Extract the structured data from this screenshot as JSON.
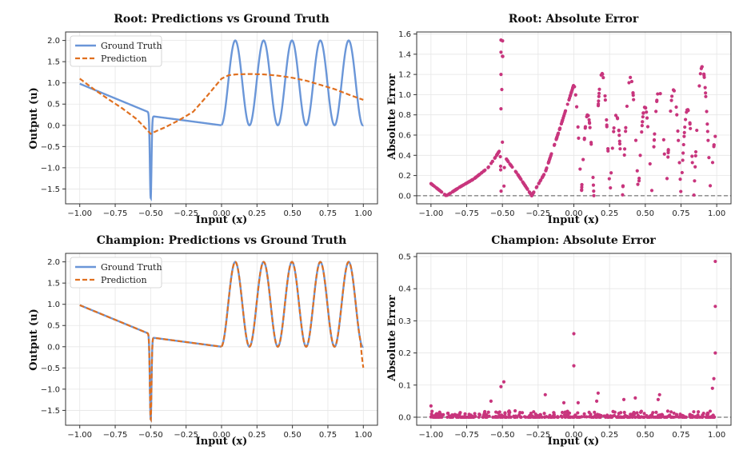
{
  "colors": {
    "ground_truth": "#6a96d8",
    "prediction": "#e07020",
    "error": "#c8357d",
    "zero_line": "#555555"
  },
  "chart_data": [
    {
      "id": "root-pred",
      "type": "line",
      "title": "Root: Predictions vs Ground Truth",
      "xlabel": "Input (x)",
      "ylabel": "Output (u)",
      "xlim": [
        -1.1,
        1.1
      ],
      "ylim": [
        -1.85,
        2.2
      ],
      "xticks": [
        -1.0,
        -0.75,
        -0.5,
        -0.25,
        0.0,
        0.25,
        0.5,
        0.75,
        1.0
      ],
      "xtick_labels": [
        "−1.00",
        "−0.75",
        "−0.50",
        "−0.25",
        "0.00",
        "0.25",
        "0.50",
        "0.75",
        "1.00"
      ],
      "yticks": [
        -1.5,
        -1.0,
        -0.5,
        0.0,
        0.5,
        1.0,
        1.5,
        2.0
      ],
      "ytick_labels": [
        "−1.5",
        "−1.0",
        "−0.5",
        "0.0",
        "0.5",
        "1.0",
        "1.5",
        "2.0"
      ],
      "legend": {
        "position": "top-left",
        "entries": [
          "Ground Truth",
          "Prediction"
        ]
      },
      "grid": true,
      "series": [
        {
          "name": "Ground Truth",
          "style": "solid",
          "function": "ground_truth_piecewise"
        },
        {
          "name": "Prediction",
          "style": "dashed",
          "x": [
            -1.0,
            -0.9,
            -0.8,
            -0.7,
            -0.6,
            -0.55,
            -0.5,
            -0.45,
            -0.4,
            -0.3,
            -0.2,
            -0.1,
            0.0,
            0.05,
            0.1,
            0.2,
            0.3,
            0.4,
            0.5,
            0.6,
            0.7,
            0.8,
            0.9,
            1.0
          ],
          "y": [
            1.1,
            0.85,
            0.62,
            0.4,
            0.15,
            -0.02,
            -0.2,
            -0.12,
            -0.05,
            0.12,
            0.32,
            0.7,
            1.1,
            1.18,
            1.2,
            1.21,
            1.2,
            1.17,
            1.12,
            1.05,
            0.95,
            0.85,
            0.72,
            0.6
          ]
        }
      ]
    },
    {
      "id": "root-err",
      "type": "scatter",
      "title": "Root: Absolute Error",
      "xlabel": "Input (x)",
      "ylabel": "Absolute Error",
      "xlim": [
        -1.1,
        1.1
      ],
      "ylim": [
        -0.08,
        1.62
      ],
      "xticks": [
        -1.0,
        -0.75,
        -0.5,
        -0.25,
        0.0,
        0.25,
        0.5,
        0.75,
        1.0
      ],
      "xtick_labels": [
        "−1.00",
        "−0.75",
        "−0.50",
        "−0.25",
        "0.00",
        "0.25",
        "0.50",
        "0.75",
        "1.00"
      ],
      "yticks": [
        0.0,
        0.2,
        0.4,
        0.6,
        0.8,
        1.0,
        1.2,
        1.4,
        1.6
      ],
      "ytick_labels": [
        "0.0",
        "0.2",
        "0.4",
        "0.6",
        "0.8",
        "1.0",
        "1.2",
        "1.4",
        "1.6"
      ],
      "grid": true,
      "zero_line": true,
      "points_rule": "absolute difference between ground truth and prediction, sampled across x; spikes near x=-0.5 reach 1.54",
      "highlights": [
        {
          "x": -0.51,
          "y": 1.54
        },
        {
          "x": -0.51,
          "y": 1.42
        },
        {
          "x": -0.5,
          "y": 1.38
        },
        {
          "x": -0.51,
          "y": 1.2
        },
        {
          "x": -0.51,
          "y": 0.86
        },
        {
          "x": -0.5,
          "y": 0.53
        }
      ]
    },
    {
      "id": "champ-pred",
      "type": "line",
      "title": "Champion: Predictions vs Ground Truth",
      "xlabel": "Input (x)",
      "ylabel": "Output (u)",
      "xlim": [
        -1.1,
        1.1
      ],
      "ylim": [
        -1.85,
        2.2
      ],
      "xticks": [
        -1.0,
        -0.75,
        -0.5,
        -0.25,
        0.0,
        0.25,
        0.5,
        0.75,
        1.0
      ],
      "xtick_labels": [
        "−1.00",
        "−0.75",
        "−0.50",
        "−0.25",
        "0.00",
        "0.25",
        "0.50",
        "0.75",
        "1.00"
      ],
      "yticks": [
        -1.5,
        -1.0,
        -0.5,
        0.0,
        0.5,
        1.0,
        1.5,
        2.0
      ],
      "ytick_labels": [
        "−1.5",
        "−1.0",
        "−0.5",
        "0.0",
        "0.5",
        "1.0",
        "1.5",
        "2.0"
      ],
      "legend": {
        "position": "top-left",
        "entries": [
          "Ground Truth",
          "Prediction"
        ]
      },
      "grid": true,
      "series": [
        {
          "name": "Ground Truth",
          "style": "solid",
          "function": "ground_truth_piecewise"
        },
        {
          "name": "Prediction",
          "style": "dashed",
          "function": "ground_truth_piecewise_with_small_error"
        }
      ]
    },
    {
      "id": "champ-err",
      "type": "scatter",
      "title": "Champion: Absolute Error",
      "xlabel": "Input (x)",
      "ylabel": "Absolute Error",
      "xlim": [
        -1.1,
        1.1
      ],
      "ylim": [
        -0.025,
        0.51
      ],
      "xticks": [
        -1.0,
        -0.75,
        -0.5,
        -0.25,
        0.0,
        0.25,
        0.5,
        0.75,
        1.0
      ],
      "xtick_labels": [
        "−1.00",
        "−0.75",
        "−0.50",
        "−0.25",
        "0.00",
        "0.25",
        "0.50",
        "0.75",
        "1.00"
      ],
      "yticks": [
        0.0,
        0.1,
        0.2,
        0.3,
        0.4,
        0.5
      ],
      "ytick_labels": [
        "0.0",
        "0.1",
        "0.2",
        "0.3",
        "0.4",
        "0.5"
      ],
      "grid": true,
      "zero_line": true,
      "highlights": [
        {
          "x": 0.99,
          "y": 0.485
        },
        {
          "x": 0.99,
          "y": 0.345
        },
        {
          "x": 0.99,
          "y": 0.2
        },
        {
          "x": 0.0,
          "y": 0.26
        },
        {
          "x": 0.0,
          "y": 0.16
        },
        {
          "x": 0.98,
          "y": 0.12
        },
        {
          "x": 0.97,
          "y": 0.09
        },
        {
          "x": -0.49,
          "y": 0.11
        },
        {
          "x": -0.51,
          "y": 0.095
        },
        {
          "x": 0.6,
          "y": 0.07
        },
        {
          "x": 0.17,
          "y": 0.075
        },
        {
          "x": -0.2,
          "y": 0.07
        },
        {
          "x": 0.43,
          "y": 0.06
        },
        {
          "x": 0.35,
          "y": 0.055
        },
        {
          "x": -0.07,
          "y": 0.045
        },
        {
          "x": 0.03,
          "y": 0.045
        },
        {
          "x": -0.58,
          "y": 0.05
        },
        {
          "x": -1.0,
          "y": 0.035
        },
        {
          "x": 0.16,
          "y": 0.05
        },
        {
          "x": 0.59,
          "y": 0.055
        }
      ]
    }
  ]
}
